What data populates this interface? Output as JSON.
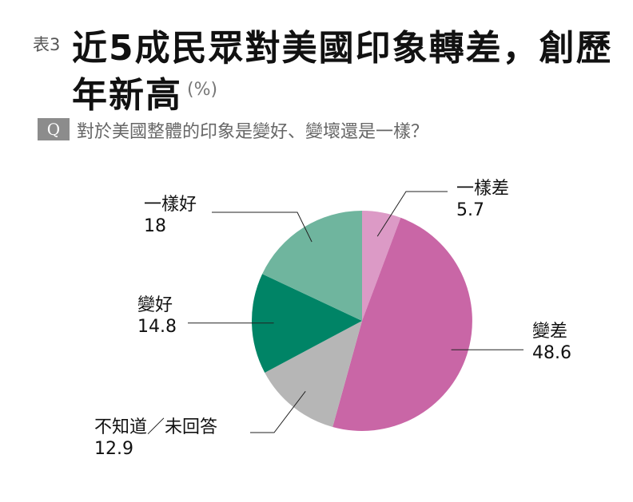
{
  "header": {
    "table_number": "表3",
    "title_line1": "近5成民眾對美國印象轉差，創歷",
    "title_line2": "年新高",
    "unit": "(%)"
  },
  "question": {
    "badge": "Q",
    "text": "對於美國整體的印象是變好、變壞還是一樣？"
  },
  "chart_data": {
    "type": "pie",
    "start_angle_deg": 0,
    "direction": "clockwise",
    "slices": [
      {
        "label": "一樣差",
        "value": 5.7,
        "color": "#dc9ac6"
      },
      {
        "label": "變差",
        "value": 48.6,
        "color": "#c966a6"
      },
      {
        "label": "不知道／未回答",
        "value": 12.9,
        "color": "#b6b6b6"
      },
      {
        "label": "變好",
        "value": 14.8,
        "color": "#008466"
      },
      {
        "label": "一樣好",
        "value": 18,
        "color": "#6fb59e"
      }
    ]
  }
}
